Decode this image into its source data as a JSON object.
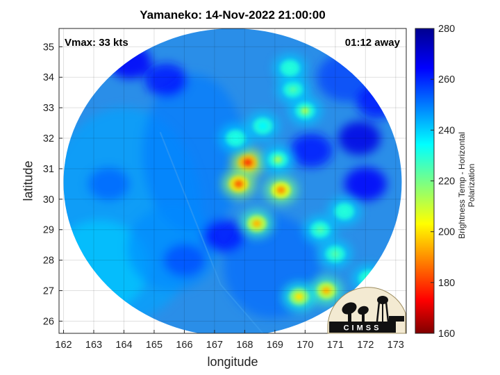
{
  "title": "Yamaneko: 14-Nov-2022 21:00:00",
  "vmax_label": "Vmax: 33 kts",
  "time_label": "01:12 away",
  "chart_data": {
    "type": "heatmap",
    "xlabel": "longitude",
    "ylabel": "latitude",
    "xlim": [
      161.85,
      173.35
    ],
    "ylim": [
      25.6,
      35.6
    ],
    "x_ticks": [
      "162",
      "163",
      "164",
      "165",
      "166",
      "167",
      "168",
      "169",
      "170",
      "171",
      "172",
      "173"
    ],
    "y_ticks": [
      "26",
      "27",
      "28",
      "29",
      "30",
      "31",
      "32",
      "33",
      "34",
      "35"
    ],
    "grid": true,
    "colorbar": {
      "label": "Brightness Temp - Horizontal Polarization",
      "range": [
        160,
        280
      ],
      "ticks": [
        "160",
        "180",
        "200",
        "220",
        "240",
        "260",
        "280"
      ]
    },
    "swath_center": [
      167.6,
      30.55
    ],
    "swath_radius_deg": [
      5.6,
      5.05
    ],
    "cold_features": [
      {
        "lon": 168.1,
        "lat": 31.2,
        "tb": 180
      },
      {
        "lon": 167.8,
        "lat": 30.5,
        "tb": 185
      },
      {
        "lon": 169.2,
        "lat": 30.3,
        "tb": 190
      },
      {
        "lon": 168.4,
        "lat": 29.2,
        "tb": 195
      },
      {
        "lon": 170.7,
        "lat": 27.0,
        "tb": 195
      },
      {
        "lon": 169.8,
        "lat": 26.8,
        "tb": 200
      },
      {
        "lon": 169.1,
        "lat": 31.3,
        "tb": 215
      },
      {
        "lon": 169.6,
        "lat": 33.6,
        "tb": 225
      },
      {
        "lon": 170.0,
        "lat": 32.9,
        "tb": 215
      },
      {
        "lon": 169.5,
        "lat": 34.3,
        "tb": 230
      },
      {
        "lon": 167.7,
        "lat": 32.0,
        "tb": 232
      },
      {
        "lon": 168.6,
        "lat": 32.4,
        "tb": 235
      },
      {
        "lon": 170.5,
        "lat": 29.0,
        "tb": 225
      },
      {
        "lon": 171.0,
        "lat": 28.2,
        "tb": 225
      },
      {
        "lon": 171.3,
        "lat": 29.6,
        "tb": 230
      },
      {
        "lon": 172.1,
        "lat": 27.4,
        "tb": 230
      }
    ],
    "warm_features": [
      {
        "lon": 164.2,
        "lat": 34.5,
        "tb": 265
      },
      {
        "lon": 165.4,
        "lat": 33.9,
        "tb": 262
      },
      {
        "lon": 171.8,
        "lat": 32.0,
        "tb": 268
      },
      {
        "lon": 172.0,
        "lat": 30.5,
        "tb": 265
      },
      {
        "lon": 172.4,
        "lat": 33.2,
        "tb": 262
      },
      {
        "lon": 167.3,
        "lat": 28.8,
        "tb": 262
      },
      {
        "lon": 166.0,
        "lat": 28.0,
        "tb": 255
      },
      {
        "lon": 170.2,
        "lat": 31.6,
        "tb": 262
      },
      {
        "lon": 163.5,
        "lat": 30.5,
        "tb": 252
      }
    ]
  },
  "logo_text": "CIMSS"
}
